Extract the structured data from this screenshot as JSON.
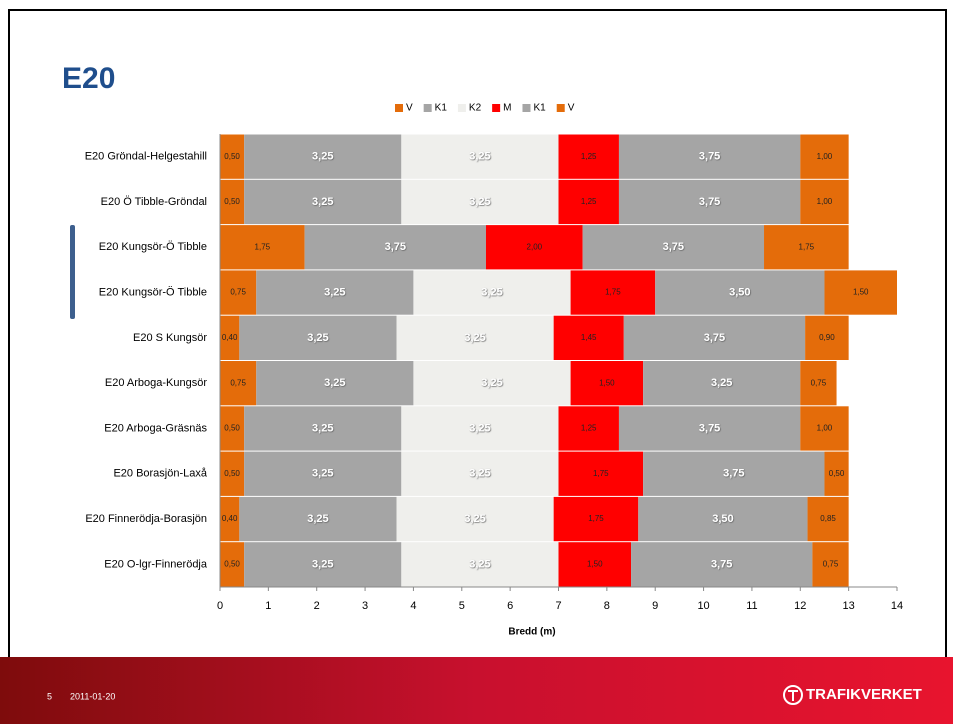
{
  "chart_data": {
    "type": "stacked-bar-horizontal",
    "title": "E20",
    "x_label": "Bredd (m)",
    "categories": [
      "E20 Gröndal-Helgestahill",
      "E20 Ö Tibble-Gröndal",
      "E20 Kungsör-Ö Tibble",
      "E20 Kungsör-Ö Tibble",
      "E20 S Kungsör",
      "E20 Arboga-Kungsör",
      "E20 Arboga-Gräsnäs",
      "E20 Borasjön-Laxå",
      "E20 Finnerödja-Borasjön",
      "E20 O-lgr-Finnerödja"
    ],
    "series": [
      {
        "name": "V",
        "color": "#e46c0a",
        "values": [
          0.5,
          0.5,
          1.75,
          0.75,
          0.4,
          0.75,
          0.5,
          0.5,
          0.4,
          0.5
        ],
        "value_labels": [
          "0,50",
          "0,50",
          "1,75",
          "0,75",
          "0,40",
          "0,75",
          "0,50",
          "0,50",
          "0,40",
          "0,50"
        ]
      },
      {
        "name": "K1",
        "color": "#a5a5a5",
        "values": [
          3.25,
          3.25,
          3.75,
          3.25,
          3.25,
          3.25,
          3.25,
          3.25,
          3.25,
          3.25
        ],
        "value_labels": [
          "3,25",
          "3,25",
          "3,75",
          "3,25",
          "3,25",
          "3,25",
          "3,25",
          "3,25",
          "3,25",
          "3,25"
        ]
      },
      {
        "name": "K2",
        "color": "#efefec",
        "values": [
          3.25,
          3.25,
          null,
          3.25,
          3.25,
          3.25,
          3.25,
          3.25,
          3.25,
          3.25
        ],
        "value_labels": [
          "3,25",
          "3,25",
          null,
          "3,25",
          "3,25",
          "3,25",
          "3,25",
          "3,25",
          "3,25",
          "3,25"
        ]
      },
      {
        "name": "M",
        "color": "#ff0000",
        "values": [
          1.25,
          1.25,
          2.0,
          1.75,
          1.45,
          1.5,
          1.25,
          1.75,
          1.75,
          1.5
        ],
        "value_labels": [
          "1,25",
          "1,25",
          "2,00",
          "1,75",
          "1,45",
          "1,50",
          "1,25",
          "1,75",
          "1,75",
          "1,50"
        ]
      },
      {
        "name": "K1",
        "color": "#a5a5a5",
        "values": [
          3.75,
          3.75,
          3.75,
          3.5,
          3.75,
          3.25,
          3.75,
          3.75,
          3.5,
          3.75
        ],
        "value_labels": [
          "3,75",
          "3,75",
          "3,75",
          "3,50",
          "3,75",
          "3,25",
          "3,75",
          "3,75",
          "3,50",
          "3,75"
        ]
      },
      {
        "name": "V",
        "color": "#e46c0a",
        "values": [
          1.0,
          1.0,
          1.75,
          1.5,
          0.9,
          0.75,
          1.0,
          0.5,
          0.85,
          0.75
        ],
        "value_labels": [
          "1,00",
          "1,00",
          "1,75",
          "1,50",
          "0,90",
          "0,75",
          "1,00",
          "0,50",
          "0,85",
          "0,75"
        ]
      }
    ],
    "xlim": [
      0,
      14
    ],
    "xticks": [
      0,
      1,
      2,
      3,
      4,
      5,
      6,
      7,
      8,
      9,
      10,
      11,
      12,
      13,
      14
    ]
  },
  "footer": {
    "page_number": "5",
    "date": "2011-01-20",
    "logo": "TRAFIKVERKET"
  }
}
